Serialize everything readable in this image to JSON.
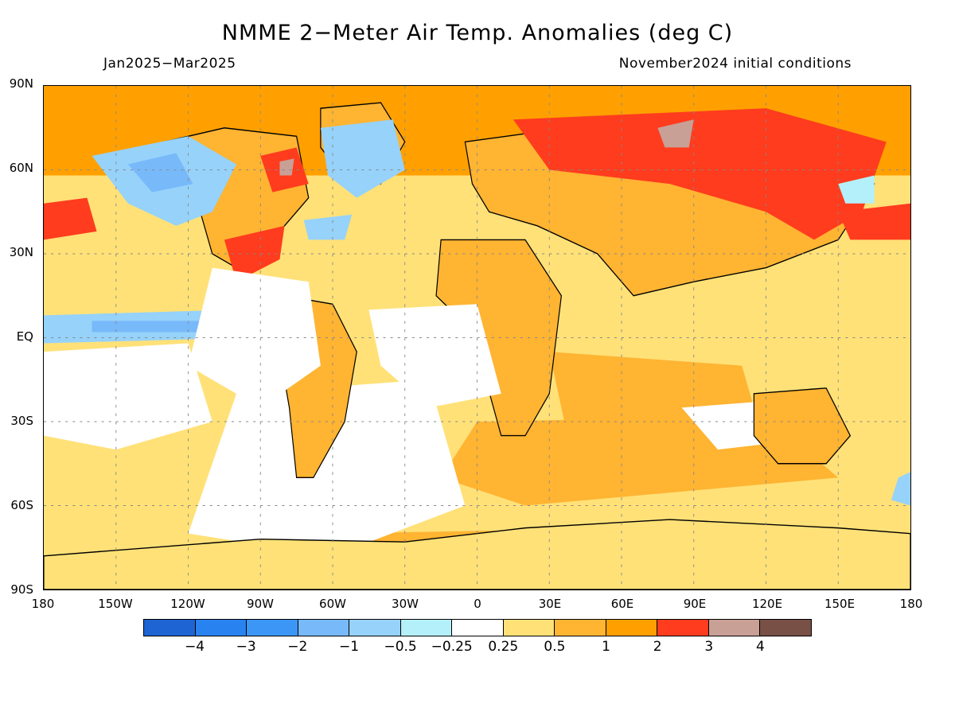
{
  "title": "NMME 2−Meter Air Temp. Anomalies (deg C)",
  "period": "Jan2025−Mar2025",
  "initial_conditions": "November2024 initial conditions",
  "lat_labels": [
    "90N",
    "60N",
    "30N",
    "EQ",
    "30S",
    "60S",
    "90S"
  ],
  "lon_labels": [
    "180",
    "150W",
    "120W",
    "90W",
    "60W",
    "30W",
    "0",
    "30E",
    "60E",
    "90E",
    "120E",
    "150E",
    "180"
  ],
  "colorbar": {
    "colors": [
      "#1e64d2",
      "#2882f0",
      "#3c96f5",
      "#78b9fa",
      "#96d2fa",
      "#b4f0fa",
      "#ffffff",
      "#ffe178",
      "#ffb432",
      "#ffa000",
      "#ff3c1e",
      "#c8a096",
      "#785046"
    ],
    "labels": [
      "−4",
      "−3",
      "−2",
      "−1",
      "−0.5",
      "−0.25",
      "0.25",
      "0.5",
      "1",
      "2",
      "3",
      "4"
    ]
  },
  "map_colors": {
    "ocean_base": "#ffe178",
    "land_base": "#ffb432",
    "strong_warm": "#ffa000",
    "very_warm": "#ff3c1e",
    "extreme": "#c8a096",
    "neutral": "#ffffff",
    "cool_light": "#b4f0fa",
    "cool": "#96d2fa",
    "cold": "#78b9fa",
    "coastline": "#000000",
    "grid": "#888888"
  }
}
